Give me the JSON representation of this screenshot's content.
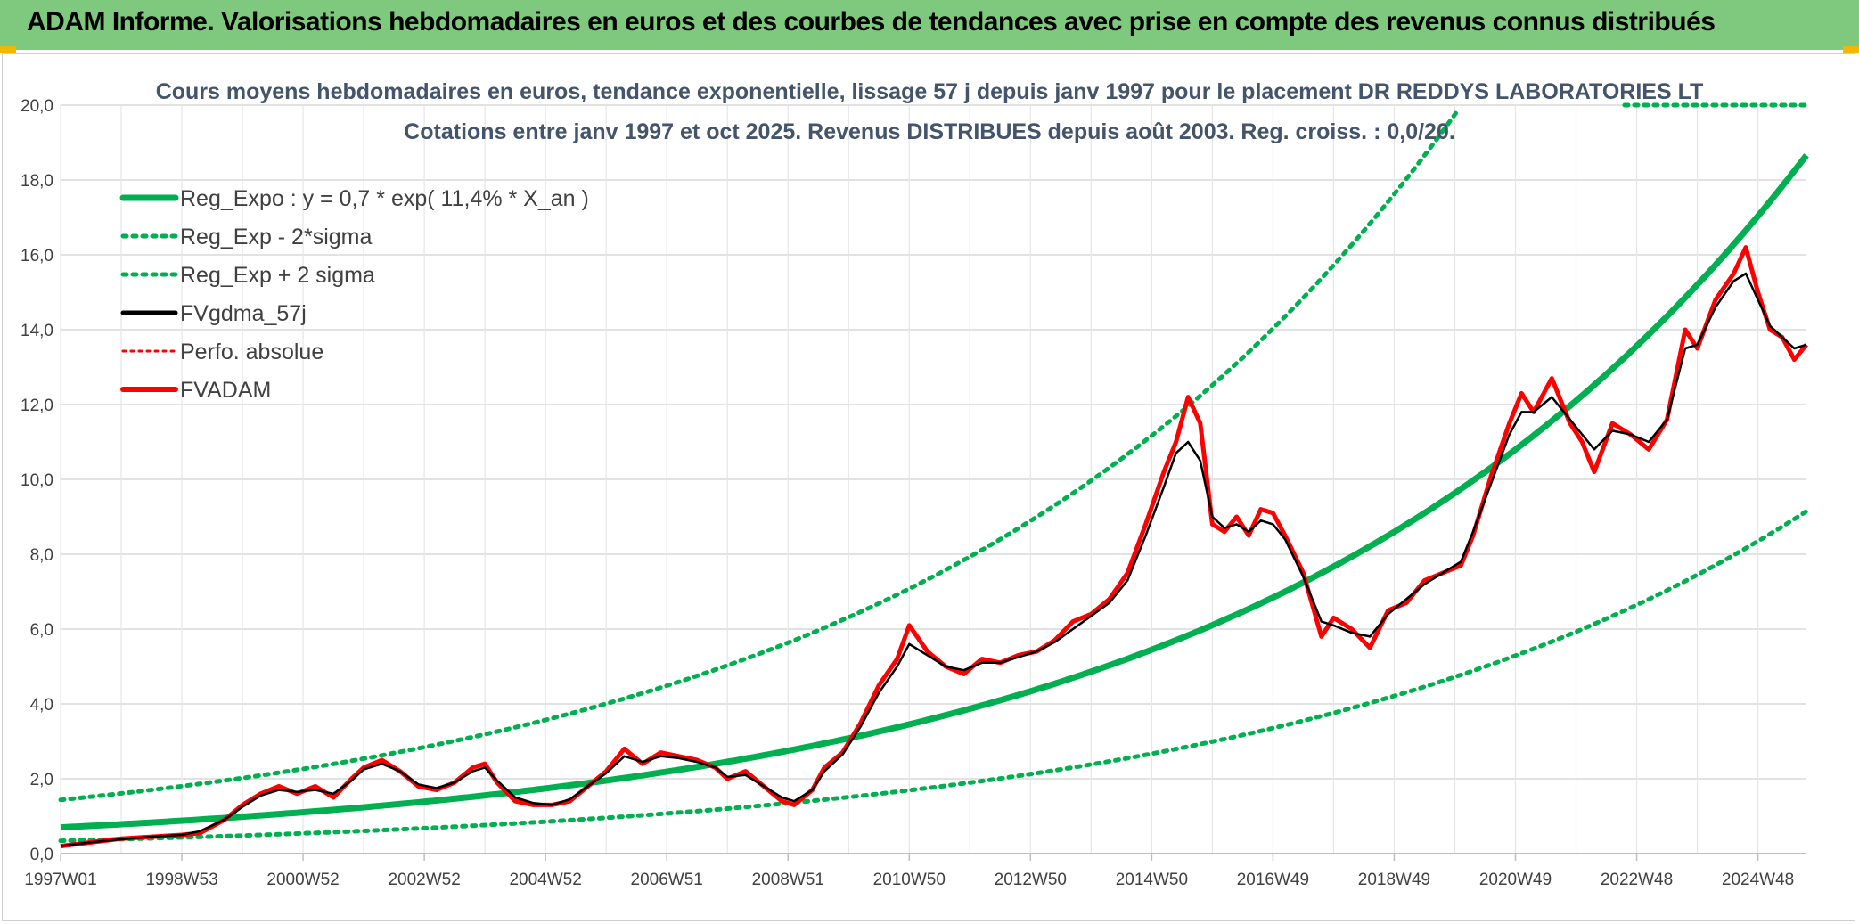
{
  "header": {
    "title": "ADAM Informe. Valorisations hebdomadaires en euros et des courbes de tendances avec prise en compte des revenus connus distribués"
  },
  "colors": {
    "banner": "#7fc97f",
    "reg": "#00b050",
    "fvg": "#000000",
    "fvadam": "#ff0000",
    "perfo": "#ff0000"
  },
  "chart_data": {
    "type": "line",
    "title_line1": "Cours moyens hebdomadaires en euros, tendance exponentielle, lissage 57 j depuis janv 1997 pour le placement DR REDDYS LABORATORIES LT",
    "title_line2": "Cotations entre janv 1997 et oct 2025. Revenus DISTRIBUES depuis août 2003. Reg. croiss. : 0,0/20.",
    "ylim": [
      0,
      20
    ],
    "xlim_years": [
      1997.0,
      2025.8
    ],
    "y_ticks": [
      "0,0",
      "2,0",
      "4,0",
      "6,0",
      "8,0",
      "10,0",
      "12,0",
      "14,0",
      "16,0",
      "18,0",
      "20,0"
    ],
    "x_ticks": [
      {
        "label": "1997W01",
        "year": 1997.0
      },
      {
        "label": "1998W53",
        "year": 1999.0
      },
      {
        "label": "2000W52",
        "year": 2001.0
      },
      {
        "label": "2002W52",
        "year": 2003.0
      },
      {
        "label": "2004W52",
        "year": 2005.0
      },
      {
        "label": "2006W51",
        "year": 2007.0
      },
      {
        "label": "2008W51",
        "year": 2009.0
      },
      {
        "label": "2010W50",
        "year": 2011.0
      },
      {
        "label": "2012W50",
        "year": 2013.0
      },
      {
        "label": "2014W50",
        "year": 2015.0
      },
      {
        "label": "2016W49",
        "year": 2017.0
      },
      {
        "label": "2018W49",
        "year": 2019.0
      },
      {
        "label": "2020W49",
        "year": 2021.0
      },
      {
        "label": "2022W48",
        "year": 2023.0
      },
      {
        "label": "2024W48",
        "year": 2025.0
      }
    ],
    "legend": [
      {
        "key": "reg",
        "label": "Reg_Expo : y = 0,7 * exp( 11,4% *  X_an )"
      },
      {
        "key": "low",
        "label": "Reg_Exp - 2*sigma"
      },
      {
        "key": "high",
        "label": "Reg_Exp + 2 sigma"
      },
      {
        "key": "fvg",
        "label": "FVgdma_57j"
      },
      {
        "key": "perfo",
        "label": "Perfo. absolue"
      },
      {
        "key": "fvadam",
        "label": "FVADAM"
      }
    ],
    "regression": {
      "a": 0.7,
      "rate": 0.114,
      "low_factor": 0.49,
      "high_factor": 2.05
    },
    "series": [
      {
        "name": "FVADAM",
        "x": [
          1997.0,
          1997.5,
          1998.0,
          1998.5,
          1999.0,
          1999.3,
          1999.7,
          2000.0,
          2000.3,
          2000.6,
          2000.9,
          2001.2,
          2001.5,
          2001.8,
          2002.0,
          2002.3,
          2002.6,
          2002.9,
          2003.2,
          2003.5,
          2003.8,
          2004.0,
          2004.2,
          2004.5,
          2004.8,
          2005.1,
          2005.4,
          2005.7,
          2006.0,
          2006.3,
          2006.6,
          2006.9,
          2007.2,
          2007.5,
          2007.8,
          2008.0,
          2008.3,
          2008.6,
          2008.9,
          2009.1,
          2009.4,
          2009.6,
          2009.9,
          2010.2,
          2010.5,
          2010.8,
          2011.0,
          2011.3,
          2011.6,
          2011.9,
          2012.2,
          2012.5,
          2012.8,
          2013.1,
          2013.4,
          2013.7,
          2014.0,
          2014.3,
          2014.6,
          2014.9,
          2015.2,
          2015.4,
          2015.6,
          2015.8,
          2016.0,
          2016.2,
          2016.4,
          2016.6,
          2016.8,
          2017.0,
          2017.2,
          2017.5,
          2017.8,
          2018.0,
          2018.3,
          2018.6,
          2018.9,
          2019.2,
          2019.5,
          2019.8,
          2020.1,
          2020.3,
          2020.6,
          2020.9,
          2021.1,
          2021.3,
          2021.6,
          2021.9,
          2022.1,
          2022.3,
          2022.6,
          2022.9,
          2023.2,
          2023.5,
          2023.8,
          2024.0,
          2024.3,
          2024.6,
          2024.8,
          2025.0,
          2025.2,
          2025.4,
          2025.6,
          2025.8
        ],
        "y": [
          0.2,
          0.3,
          0.4,
          0.45,
          0.5,
          0.55,
          0.9,
          1.3,
          1.6,
          1.8,
          1.6,
          1.8,
          1.5,
          2.0,
          2.3,
          2.5,
          2.2,
          1.8,
          1.7,
          1.9,
          2.3,
          2.4,
          1.9,
          1.4,
          1.3,
          1.3,
          1.4,
          1.8,
          2.2,
          2.8,
          2.4,
          2.7,
          2.6,
          2.5,
          2.3,
          2.0,
          2.2,
          1.8,
          1.4,
          1.3,
          1.7,
          2.3,
          2.7,
          3.5,
          4.5,
          5.2,
          6.1,
          5.4,
          5.0,
          4.8,
          5.2,
          5.1,
          5.3,
          5.4,
          5.7,
          6.2,
          6.4,
          6.8,
          7.5,
          8.8,
          10.2,
          11.0,
          12.2,
          11.5,
          8.8,
          8.6,
          9.0,
          8.5,
          9.2,
          9.1,
          8.5,
          7.5,
          5.8,
          6.3,
          6.0,
          5.5,
          6.5,
          6.7,
          7.3,
          7.5,
          7.7,
          8.5,
          10.1,
          11.5,
          12.3,
          11.8,
          12.7,
          11.5,
          11.0,
          10.2,
          11.5,
          11.2,
          10.8,
          11.6,
          14.0,
          13.5,
          14.8,
          15.5,
          16.2,
          15.0,
          14.0,
          13.8,
          13.2,
          13.6
        ]
      },
      {
        "name": "FVgdma_57j",
        "x": [
          1997.0,
          1997.5,
          1998.0,
          1998.5,
          1999.0,
          1999.3,
          1999.7,
          2000.0,
          2000.3,
          2000.6,
          2000.9,
          2001.2,
          2001.5,
          2001.8,
          2002.0,
          2002.3,
          2002.6,
          2002.9,
          2003.2,
          2003.5,
          2003.8,
          2004.0,
          2004.2,
          2004.5,
          2004.8,
          2005.1,
          2005.4,
          2005.7,
          2006.0,
          2006.3,
          2006.6,
          2006.9,
          2007.2,
          2007.5,
          2007.8,
          2008.0,
          2008.3,
          2008.6,
          2008.9,
          2009.1,
          2009.4,
          2009.6,
          2009.9,
          2010.2,
          2010.5,
          2010.8,
          2011.0,
          2011.3,
          2011.6,
          2011.9,
          2012.2,
          2012.5,
          2012.8,
          2013.1,
          2013.4,
          2013.7,
          2014.0,
          2014.3,
          2014.6,
          2014.9,
          2015.2,
          2015.4,
          2015.6,
          2015.8,
          2016.0,
          2016.2,
          2016.4,
          2016.6,
          2016.8,
          2017.0,
          2017.2,
          2017.5,
          2017.8,
          2018.0,
          2018.3,
          2018.6,
          2018.9,
          2019.2,
          2019.5,
          2019.8,
          2020.1,
          2020.3,
          2020.6,
          2020.9,
          2021.1,
          2021.3,
          2021.6,
          2021.9,
          2022.1,
          2022.3,
          2022.6,
          2022.9,
          2023.2,
          2023.5,
          2023.8,
          2024.0,
          2024.3,
          2024.6,
          2024.8,
          2025.0,
          2025.2,
          2025.4,
          2025.6,
          2025.8
        ],
        "y": [
          0.2,
          0.3,
          0.38,
          0.45,
          0.5,
          0.6,
          0.9,
          1.25,
          1.55,
          1.7,
          1.65,
          1.7,
          1.6,
          1.95,
          2.25,
          2.4,
          2.2,
          1.85,
          1.75,
          1.9,
          2.2,
          2.3,
          1.95,
          1.5,
          1.35,
          1.3,
          1.45,
          1.8,
          2.15,
          2.6,
          2.45,
          2.6,
          2.55,
          2.45,
          2.3,
          2.05,
          2.1,
          1.8,
          1.5,
          1.4,
          1.7,
          2.2,
          2.65,
          3.4,
          4.3,
          5.0,
          5.6,
          5.3,
          5.0,
          4.9,
          5.1,
          5.1,
          5.25,
          5.4,
          5.65,
          6.0,
          6.35,
          6.7,
          7.3,
          8.5,
          9.8,
          10.7,
          11.0,
          10.5,
          9.0,
          8.7,
          8.8,
          8.6,
          8.9,
          8.8,
          8.4,
          7.4,
          6.2,
          6.1,
          5.9,
          5.8,
          6.4,
          6.8,
          7.2,
          7.5,
          7.8,
          8.6,
          9.9,
          11.2,
          11.8,
          11.8,
          12.2,
          11.6,
          11.2,
          10.8,
          11.3,
          11.2,
          11.0,
          11.6,
          13.5,
          13.6,
          14.6,
          15.3,
          15.5,
          14.8,
          14.1,
          13.8,
          13.5,
          13.6
        ]
      }
    ]
  }
}
